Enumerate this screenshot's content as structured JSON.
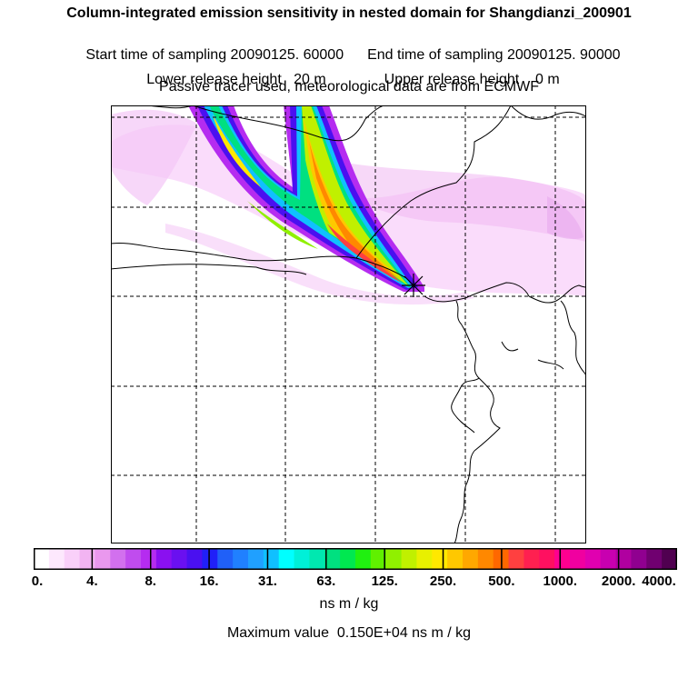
{
  "header": {
    "title": "Column-integrated emission sensitivity in nested domain for Shangdianzi_200901",
    "start_label": "Start time of sampling 20090125. 60000",
    "end_label": "End time of sampling 20090125. 90000",
    "lower_label": "Lower release height   20 m",
    "upper_label": "Upper release height    0 m",
    "tracer_line": "Passive tracer used, meteorological data are from ECMWF"
  },
  "map": {
    "release_marker": "star-icon",
    "colors": {
      "frame": "#000000",
      "grid": "#000000",
      "coast": "#000000"
    }
  },
  "colorbar": {
    "colors": [
      "#ffffff",
      "#fde8fd",
      "#f9d0f9",
      "#f2b4f2",
      "#ea98ee",
      "#d270ee",
      "#c04cee",
      "#b52cf0",
      "#8a10f0",
      "#6a10f0",
      "#4a10f0",
      "#2020f8",
      "#2060f8",
      "#2080ff",
      "#20a0ff",
      "#10c0ff",
      "#00ffff",
      "#00f0d8",
      "#00e8b0",
      "#00e080",
      "#00e850",
      "#20f010",
      "#60f000",
      "#90f000",
      "#c0f000",
      "#e8f000",
      "#ffe800",
      "#ffc800",
      "#ffa800",
      "#ff8800",
      "#ff6800",
      "#ff4040",
      "#ff2050",
      "#ff1060",
      "#ff0090",
      "#f000a0",
      "#e000b0",
      "#c800b0",
      "#b000a0",
      "#900090",
      "#700070",
      "#500050"
    ],
    "tick_labels": [
      "0.",
      "4.",
      "8.",
      "16.",
      "31.",
      "63.",
      "125.",
      "250.",
      "500.",
      "1000.",
      "2000.",
      "4000."
    ],
    "units": "ns m / kg",
    "max_value_text": "Maximum value  0.150E+04 ns m / kg"
  }
}
